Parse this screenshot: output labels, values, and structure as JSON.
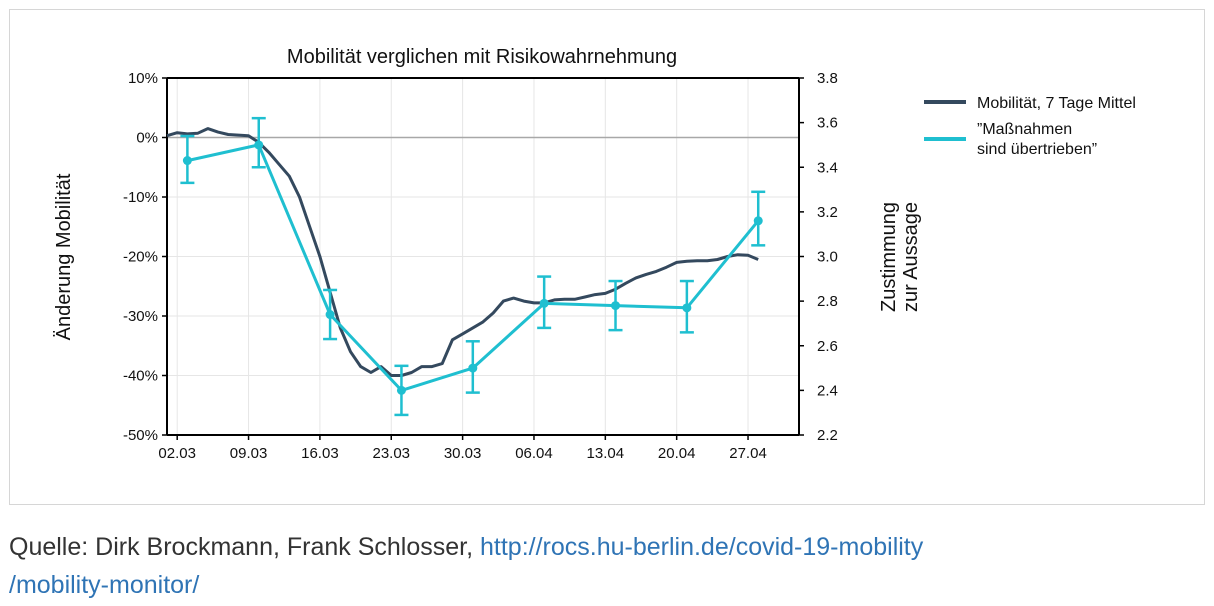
{
  "chart_data": {
    "type": "line",
    "title": "Mobilität verglichen mit Risikowahrnehmung",
    "ylabel_left": "Änderung Mobilität",
    "ylabel_right_line1": "Zustimmung",
    "ylabel_right_line2": "zur Aussage",
    "x_tick_labels": [
      "02.03",
      "09.03",
      "16.03",
      "23.03",
      "30.03",
      "06.04",
      "13.04",
      "20.04",
      "27.04"
    ],
    "x_tick_days": [
      0,
      7,
      14,
      21,
      28,
      35,
      42,
      49,
      56
    ],
    "x_range_days": [
      -1,
      61
    ],
    "y_left_ticks": [
      "10%",
      "0%",
      "-10%",
      "-20%",
      "-30%",
      "-40%",
      "-50%"
    ],
    "y_left_tick_values": [
      10,
      0,
      -10,
      -20,
      -30,
      -40,
      -50
    ],
    "y_left_range": [
      -50,
      10
    ],
    "y_right_ticks": [
      "3.8",
      "3.6",
      "3.4",
      "3.2",
      "3.0",
      "2.8",
      "2.6",
      "2.4",
      "2.2"
    ],
    "y_right_tick_values": [
      3.8,
      3.6,
      3.4,
      3.2,
      3.0,
      2.8,
      2.6,
      2.4,
      2.2
    ],
    "y_right_range": [
      2.2,
      3.8
    ],
    "grid": true,
    "legend_position": "right",
    "series": [
      {
        "name": "Mobilität, 7 Tage Mittel",
        "axis": "left",
        "color": "#34495e",
        "x": [
          -1,
          0,
          1,
          2,
          3,
          4,
          5,
          6,
          7,
          8,
          9,
          10,
          11,
          12,
          13,
          14,
          15,
          16,
          17,
          18,
          19,
          20,
          21,
          22,
          23,
          24,
          25,
          26,
          27,
          28,
          29,
          30,
          31,
          32,
          33,
          34,
          35,
          36,
          37,
          38,
          39,
          40,
          41,
          42,
          43,
          44,
          45,
          46,
          47,
          48,
          49,
          50,
          51,
          52,
          53,
          54,
          55,
          56,
          57
        ],
        "y": [
          0.3,
          0.8,
          0.6,
          0.7,
          1.5,
          0.9,
          0.5,
          0.4,
          0.3,
          -0.8,
          -2.5,
          -4.5,
          -6.5,
          -10,
          -15,
          -20,
          -26,
          -32,
          -36,
          -38.5,
          -39.5,
          -38.5,
          -40,
          -40,
          -39.5,
          -38.5,
          -38.5,
          -38,
          -34,
          -33,
          -32,
          -31,
          -29.5,
          -27.5,
          -27,
          -27.5,
          -27.8,
          -27.8,
          -27.3,
          -27.2,
          -27.2,
          -26.8,
          -26.4,
          -26.2,
          -25.5,
          -24.5,
          -23.6,
          -23,
          -22.5,
          -21.8,
          -21.0,
          -20.8,
          -20.7,
          -20.7,
          -20.5,
          -20.0,
          -19.7,
          -19.8,
          -20.5
        ]
      },
      {
        "name": "”Maßnahmen sind übertrieben”",
        "legend_line1": "”Maßnahmen",
        "legend_line2": "sind übertrieben”",
        "axis": "right",
        "color": "#1fbfd0",
        "x": [
          1,
          8,
          15,
          22,
          29,
          36,
          43,
          50,
          57
        ],
        "y": [
          3.43,
          3.5,
          2.74,
          2.4,
          2.5,
          2.79,
          2.78,
          2.77,
          3.16
        ],
        "err_low": [
          3.33,
          3.4,
          2.63,
          2.29,
          2.39,
          2.68,
          2.67,
          2.66,
          3.05
        ],
        "err_high": [
          3.54,
          3.62,
          2.85,
          2.51,
          2.62,
          2.91,
          2.89,
          2.89,
          3.29
        ]
      }
    ]
  },
  "caption": {
    "prefix": "Quelle: Dirk Brockmann, Frank Schlosser, ",
    "link_line1": "http://rocs.hu-berlin.de/covid-19-mobility",
    "link_line2": "/mobility-monitor/"
  }
}
